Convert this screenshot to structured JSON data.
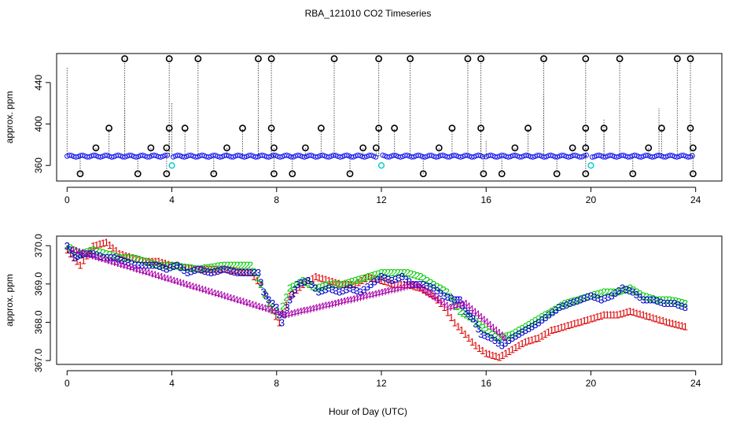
{
  "title": "RBA_121010  CO2 Timeseries",
  "xlabel": "Hour of Day (UTC)",
  "chart_data": [
    {
      "type": "scatter",
      "panel": "top",
      "ylabel": "approx. ppm",
      "xlim": [
        -0.4,
        25
      ],
      "ylim": [
        345,
        468
      ],
      "x_ticks": [
        0,
        4,
        8,
        12,
        16,
        20,
        24
      ],
      "y_ticks": [
        360,
        400,
        440
      ],
      "baseline_level": 369,
      "outlier_high_level": 463,
      "outlier_mid_level": 396,
      "outlier_low_level": 352,
      "outliers": [
        {
          "x": 0.5,
          "y": 352
        },
        {
          "x": 1.1,
          "y": 377
        },
        {
          "x": 1.6,
          "y": 396
        },
        {
          "x": 2.2,
          "y": 463
        },
        {
          "x": 2.7,
          "y": 352
        },
        {
          "x": 3.2,
          "y": 377
        },
        {
          "x": 3.8,
          "y": 377
        },
        {
          "x": 3.9,
          "y": 396
        },
        {
          "x": 3.9,
          "y": 463
        },
        {
          "x": 3.8,
          "y": 352
        },
        {
          "x": 4.5,
          "y": 396
        },
        {
          "x": 5.0,
          "y": 463
        },
        {
          "x": 5.6,
          "y": 352
        },
        {
          "x": 6.1,
          "y": 377
        },
        {
          "x": 6.7,
          "y": 396
        },
        {
          "x": 7.3,
          "y": 463
        },
        {
          "x": 7.8,
          "y": 463
        },
        {
          "x": 7.8,
          "y": 396
        },
        {
          "x": 7.9,
          "y": 377
        },
        {
          "x": 7.9,
          "y": 352
        },
        {
          "x": 8.6,
          "y": 352
        },
        {
          "x": 9.1,
          "y": 377
        },
        {
          "x": 9.7,
          "y": 396
        },
        {
          "x": 10.2,
          "y": 463
        },
        {
          "x": 10.8,
          "y": 352
        },
        {
          "x": 11.3,
          "y": 377
        },
        {
          "x": 11.9,
          "y": 396
        },
        {
          "x": 11.9,
          "y": 463
        },
        {
          "x": 11.8,
          "y": 377
        },
        {
          "x": 12.5,
          "y": 396
        },
        {
          "x": 13.1,
          "y": 463
        },
        {
          "x": 13.6,
          "y": 352
        },
        {
          "x": 14.2,
          "y": 377
        },
        {
          "x": 14.7,
          "y": 396
        },
        {
          "x": 15.3,
          "y": 463
        },
        {
          "x": 15.8,
          "y": 463
        },
        {
          "x": 15.8,
          "y": 396
        },
        {
          "x": 15.9,
          "y": 352
        },
        {
          "x": 16.6,
          "y": 352
        },
        {
          "x": 17.1,
          "y": 377
        },
        {
          "x": 17.6,
          "y": 396
        },
        {
          "x": 18.2,
          "y": 463
        },
        {
          "x": 18.7,
          "y": 352
        },
        {
          "x": 19.3,
          "y": 377
        },
        {
          "x": 19.8,
          "y": 377
        },
        {
          "x": 19.8,
          "y": 396
        },
        {
          "x": 19.8,
          "y": 463
        },
        {
          "x": 19.8,
          "y": 352
        },
        {
          "x": 20.5,
          "y": 396
        },
        {
          "x": 21.1,
          "y": 463
        },
        {
          "x": 21.6,
          "y": 352
        },
        {
          "x": 22.2,
          "y": 377
        },
        {
          "x": 22.7,
          "y": 396
        },
        {
          "x": 23.3,
          "y": 463
        },
        {
          "x": 23.8,
          "y": 463
        },
        {
          "x": 23.8,
          "y": 396
        },
        {
          "x": 23.9,
          "y": 377
        },
        {
          "x": 23.9,
          "y": 352
        }
      ],
      "cyan_points": [
        {
          "x": 4.0,
          "y": 360
        },
        {
          "x": 12.0,
          "y": 360
        },
        {
          "x": 20.0,
          "y": 360
        }
      ]
    },
    {
      "type": "scatter",
      "panel": "bottom",
      "ylabel": "approx. ppm",
      "xlim": [
        -0.4,
        25
      ],
      "ylim": [
        366.9,
        370.25
      ],
      "x_ticks": [
        0,
        4,
        8,
        12,
        16,
        20,
        24
      ],
      "y_ticks": [
        "367.0",
        "368.0",
        "369.0",
        "370.0"
      ],
      "series": [
        {
          "name": "1",
          "symbol": "1",
          "color": "#dd0000",
          "points": [
            [
              0,
              369.9
            ],
            [
              0.5,
              369.5
            ],
            [
              1,
              370.0
            ],
            [
              1.5,
              370.1
            ],
            [
              2,
              369.8
            ],
            [
              2.5,
              369.7
            ],
            [
              3,
              369.6
            ],
            [
              3.5,
              369.6
            ],
            [
              4,
              369.5
            ],
            [
              5,
              369.4
            ],
            [
              6,
              369.4
            ],
            [
              7,
              369.3
            ],
            [
              7.4,
              369.0
            ],
            [
              7.7,
              368.5
            ],
            [
              8.1,
              368.0
            ],
            [
              8.5,
              368.7
            ],
            [
              9,
              369.0
            ],
            [
              9.5,
              369.2
            ],
            [
              10,
              369.1
            ],
            [
              10.5,
              369.0
            ],
            [
              11,
              369.0
            ],
            [
              11.5,
              369.2
            ],
            [
              12,
              369.1
            ],
            [
              12.5,
              369.0
            ],
            [
              13,
              369.0
            ],
            [
              13.5,
              368.9
            ],
            [
              14,
              368.7
            ],
            [
              14.4,
              368.4
            ],
            [
              14.8,
              368.0
            ],
            [
              15.2,
              367.7
            ],
            [
              15.6,
              367.4
            ],
            [
              16,
              367.2
            ],
            [
              16.5,
              367.1
            ],
            [
              17,
              367.3
            ],
            [
              17.5,
              367.5
            ],
            [
              18,
              367.6
            ],
            [
              18.5,
              367.8
            ],
            [
              19,
              367.9
            ],
            [
              19.5,
              368.0
            ],
            [
              20,
              368.1
            ],
            [
              20.5,
              368.2
            ],
            [
              21,
              368.2
            ],
            [
              21.5,
              368.3
            ],
            [
              22,
              368.2
            ],
            [
              22.5,
              368.1
            ],
            [
              23,
              368.0
            ],
            [
              23.6,
              367.9
            ]
          ]
        },
        {
          "name": "2",
          "symbol": "2",
          "color": "#00cc00",
          "points": [
            [
              0,
              370.0
            ],
            [
              0.5,
              369.8
            ],
            [
              1,
              369.9
            ],
            [
              1.5,
              369.8
            ],
            [
              2,
              369.7
            ],
            [
              2.5,
              369.7
            ],
            [
              3,
              369.6
            ],
            [
              3.5,
              369.5
            ],
            [
              4,
              369.5
            ],
            [
              5,
              369.4
            ],
            [
              6,
              369.5
            ],
            [
              7,
              369.5
            ],
            [
              7.4,
              369.0
            ],
            [
              7.7,
              368.5
            ],
            [
              8.1,
              368.2
            ],
            [
              8.5,
              368.9
            ],
            [
              9,
              369.1
            ],
            [
              9.5,
              368.9
            ],
            [
              10,
              369.0
            ],
            [
              10.5,
              369.0
            ],
            [
              11,
              369.1
            ],
            [
              11.5,
              369.2
            ],
            [
              12,
              369.3
            ],
            [
              12.5,
              369.3
            ],
            [
              13,
              369.3
            ],
            [
              13.5,
              369.2
            ],
            [
              14,
              369.0
            ],
            [
              14.5,
              368.8
            ],
            [
              15,
              368.3
            ],
            [
              15.5,
              368.1
            ],
            [
              16,
              367.8
            ],
            [
              16.5,
              367.6
            ],
            [
              17,
              367.7
            ],
            [
              17.5,
              367.9
            ],
            [
              18,
              368.1
            ],
            [
              18.5,
              368.3
            ],
            [
              19,
              368.5
            ],
            [
              19.5,
              368.6
            ],
            [
              20,
              368.7
            ],
            [
              20.5,
              368.8
            ],
            [
              21,
              368.8
            ],
            [
              21.5,
              368.9
            ],
            [
              22,
              368.7
            ],
            [
              22.5,
              368.6
            ],
            [
              23,
              368.6
            ],
            [
              23.6,
              368.5
            ]
          ]
        },
        {
          "name": "3",
          "symbol": "3",
          "color": "#0000cc",
          "points": [
            [
              0,
              370.0
            ],
            [
              0.3,
              369.7
            ],
            [
              0.6,
              369.8
            ],
            [
              1,
              369.8
            ],
            [
              1.4,
              369.7
            ],
            [
              1.8,
              369.7
            ],
            [
              2.2,
              369.6
            ],
            [
              2.6,
              369.5
            ],
            [
              3,
              369.5
            ],
            [
              3.4,
              369.5
            ],
            [
              3.8,
              369.4
            ],
            [
              4.2,
              369.5
            ],
            [
              4.6,
              369.3
            ],
            [
              5,
              369.4
            ],
            [
              5.5,
              369.3
            ],
            [
              6,
              369.4
            ],
            [
              6.5,
              369.3
            ],
            [
              7,
              369.3
            ],
            [
              7.3,
              369.3
            ],
            [
              7.5,
              368.8
            ],
            [
              7.7,
              368.6
            ],
            [
              8.0,
              368.4
            ],
            [
              8.2,
              368.0
            ],
            [
              8.5,
              368.6
            ],
            [
              8.8,
              369.0
            ],
            [
              9.2,
              369.1
            ],
            [
              9.6,
              368.8
            ],
            [
              10,
              368.9
            ],
            [
              10.4,
              368.8
            ],
            [
              10.8,
              368.9
            ],
            [
              11.2,
              368.8
            ],
            [
              11.6,
              369.0
            ],
            [
              12,
              369.2
            ],
            [
              12.4,
              369.1
            ],
            [
              12.8,
              369.2
            ],
            [
              13.2,
              369.0
            ],
            [
              13.6,
              369.0
            ],
            [
              14,
              368.9
            ],
            [
              14.4,
              368.7
            ],
            [
              14.8,
              368.6
            ],
            [
              15,
              368.6
            ],
            [
              15.2,
              368.3
            ],
            [
              15.5,
              368.1
            ],
            [
              15.8,
              367.7
            ],
            [
              16.2,
              367.6
            ],
            [
              16.6,
              367.4
            ],
            [
              17,
              367.6
            ],
            [
              17.5,
              367.8
            ],
            [
              18,
              368.0
            ],
            [
              18.4,
              368.2
            ],
            [
              18.8,
              368.4
            ],
            [
              19.2,
              368.5
            ],
            [
              19.6,
              368.6
            ],
            [
              20,
              368.7
            ],
            [
              20.4,
              368.6
            ],
            [
              20.8,
              368.7
            ],
            [
              21.2,
              368.9
            ],
            [
              21.6,
              368.8
            ],
            [
              22,
              368.6
            ],
            [
              22.4,
              368.6
            ],
            [
              22.8,
              368.5
            ],
            [
              23.2,
              368.5
            ],
            [
              23.6,
              368.4
            ]
          ]
        },
        {
          "name": "4",
          "symbol": "4",
          "color": "#aa00aa",
          "points": [
            [
              0.2,
              369.9
            ],
            [
              7.9,
              368.3
            ],
            [
              8.3,
              368.2
            ],
            [
              13.3,
              369.0
            ],
            [
              14.6,
              368.4
            ],
            [
              15.2,
              368.5
            ],
            [
              16.7,
              367.6
            ]
          ]
        }
      ]
    }
  ]
}
